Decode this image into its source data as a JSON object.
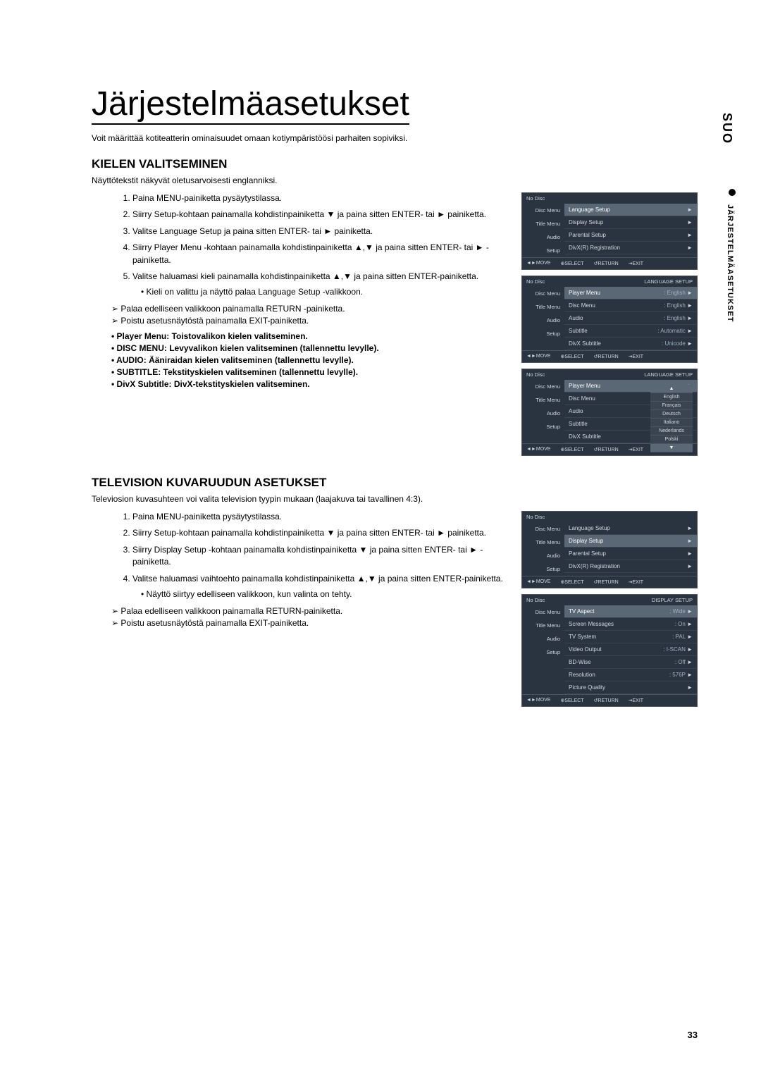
{
  "page_title": "Järjestelmäasetukset",
  "intro": "Voit määrittää kotiteatterin ominaisuudet omaan kotiympäristöösi parhaiten sopiviksi.",
  "vertical_label_1": "SUO",
  "vertical_label_2": "JÄRJESTELMÄASETUKSET",
  "page_number": "33",
  "section1": {
    "title": "KIELEN VALITSEMINEN",
    "subtitle": "Näyttötekstit näkyvät oletusarvoisesti englanniksi.",
    "steps": [
      "Paina MENU-painiketta pysäytystilassa.",
      "Siirry Setup-kohtaan painamalla kohdistinpainiketta ▼ ja paina sitten ENTER- tai ► painiketta.",
      "Valitse Language Setup ja paina sitten ENTER- tai ► painiketta.",
      "Siirry Player Menu -kohtaan painamalla kohdistinpainiketta ▲,▼ ja paina sitten ENTER- tai ► -painiketta.",
      "Valitse haluamasi kieli painamalla kohdistinpainiketta ▲,▼ ja paina sitten ENTER-painiketta."
    ],
    "sub_bullet": "• Kieli on valittu ja näyttö palaa Language Setup -valikkoon.",
    "caret1": "Palaa edelliseen valikkoon painamalla RETURN -painiketta.",
    "caret2": "Poistu asetusnäytöstä painamalla EXIT-painiketta.",
    "features": [
      "Player Menu: Toistovalikon kielen valitseminen.",
      "DISC MENU: Levyvalikon kielen valitseminen (tallennettu levylle).",
      "AUDIO: Ääniraidan kielen valitseminen (tallennettu levylle).",
      "SUBTITLE: Tekstityskielen valitseminen (tallennettu levylle).",
      "DivX Subtitle: DivX-tekstityskielen valitseminen."
    ]
  },
  "section2": {
    "title": "TELEVISION KUVARUUDUN ASETUKSET",
    "subtitle": "Televiosion kuvasuhteen voi valita television tyypin mukaan (laajakuva tai tavallinen 4:3).",
    "steps": [
      "Paina MENU-painiketta pysäytystilassa.",
      "Siirry Setup-kohtaan painamalla kohdistinpainiketta ▼ ja paina sitten ENTER- tai ► painiketta.",
      "Siirry Display Setup -kohtaan painamalla kohdistinpainiketta ▼ ja paina sitten ENTER- tai ► -painiketta.",
      "Valitse haluamasi vaihtoehto painamalla kohdistinpainiketta ▲,▼ ja paina sitten ENTER-painiketta."
    ],
    "sub_bullet": "• Näyttö siirtyy edelliseen valikkoon, kun valinta on tehty.",
    "caret1": "Palaa edelliseen valikkoon painamalla RETURN-painiketta.",
    "caret2": "Poistu asetusnäytöstä painamalla EXIT-painiketta."
  },
  "osd": {
    "no_disc": "No Disc",
    "side_labels": [
      "Disc Menu",
      "Title Menu",
      "Audio",
      "Setup"
    ],
    "footer": [
      "◄►MOVE",
      "⊕SELECT",
      "↺RETURN",
      "⇥EXIT"
    ],
    "header_right_lang": "LANGUAGE SETUP",
    "header_right_disp": "DISPLAY SETUP",
    "menu1_rows": [
      {
        "label": "Language Setup",
        "hl": true
      },
      {
        "label": "Display Setup"
      },
      {
        "label": "Parental Setup"
      },
      {
        "label": "DivX(R) Registration"
      }
    ],
    "menu2_rows": [
      {
        "label": "Player Menu",
        "val": ": English",
        "hl": true
      },
      {
        "label": "Disc Menu",
        "val": ": English"
      },
      {
        "label": "Audio",
        "val": ": English"
      },
      {
        "label": "Subtitle",
        "val": ": Automatic"
      },
      {
        "label": "DivX Subtitle",
        "val": ": Unicode"
      }
    ],
    "menu3_rows": [
      {
        "label": "Player Menu",
        "hl": true
      },
      {
        "label": "Disc Menu"
      },
      {
        "label": "Audio"
      },
      {
        "label": "Subtitle"
      },
      {
        "label": "DivX Subtitle"
      }
    ],
    "menu3_langs": [
      "▲",
      "English",
      "Français",
      "Deutsch",
      "Italiano",
      "Nederlands",
      "Polski",
      "▼"
    ],
    "menu4_rows": [
      {
        "label": "Language Setup"
      },
      {
        "label": "Display Setup",
        "hl": true
      },
      {
        "label": "Parental Setup"
      },
      {
        "label": "DivX(R) Registration"
      }
    ],
    "menu5_rows": [
      {
        "label": "TV Aspect",
        "val": ": Wide",
        "hl": true
      },
      {
        "label": "Screen Messages",
        "val": ": On"
      },
      {
        "label": "TV System",
        "val": ": PAL"
      },
      {
        "label": "Video Output",
        "val": ": I-SCAN"
      },
      {
        "label": "BD-Wise",
        "val": ": Off"
      },
      {
        "label": "Resolution",
        "val": ": 576P"
      },
      {
        "label": "Picture Quality",
        "val": ""
      }
    ]
  }
}
